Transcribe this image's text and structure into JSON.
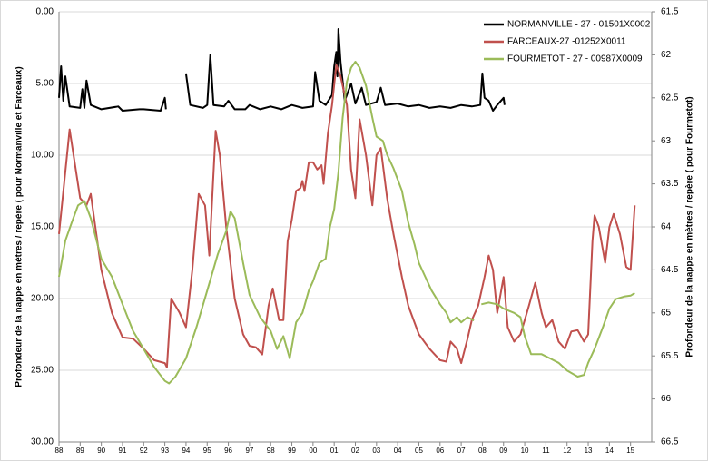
{
  "chart_data": {
    "type": "line",
    "y_label": "Profondeur de la nappe en mètres / repère ( pour Normanville et Farceaux)",
    "y2_label": "Profondeur de la nappe en mètres / repère ( pour Fourmetot)",
    "y_inverted": true,
    "y2_inverted": true,
    "grid": true,
    "legend": "top-right",
    "xlim": [
      1988,
      2016
    ],
    "xticks": [
      {
        "value": 1988,
        "label": "88"
      },
      {
        "value": 1989,
        "label": "89"
      },
      {
        "value": 1990,
        "label": "90"
      },
      {
        "value": 1991,
        "label": "91"
      },
      {
        "value": 1992,
        "label": "92"
      },
      {
        "value": 1993,
        "label": "93"
      },
      {
        "value": 1994,
        "label": "94"
      },
      {
        "value": 1995,
        "label": "95"
      },
      {
        "value": 1996,
        "label": "96"
      },
      {
        "value": 1997,
        "label": "97"
      },
      {
        "value": 1998,
        "label": "98"
      },
      {
        "value": 1999,
        "label": "99"
      },
      {
        "value": 2000,
        "label": "00"
      },
      {
        "value": 2001,
        "label": "01"
      },
      {
        "value": 2002,
        "label": "02"
      },
      {
        "value": 2003,
        "label": "03"
      },
      {
        "value": 2004,
        "label": "04"
      },
      {
        "value": 2005,
        "label": "05"
      },
      {
        "value": 2006,
        "label": "06"
      },
      {
        "value": 2007,
        "label": "07"
      },
      {
        "value": 2008,
        "label": "08"
      },
      {
        "value": 2009,
        "label": "09"
      },
      {
        "value": 2010,
        "label": "10"
      },
      {
        "value": 2011,
        "label": "11"
      },
      {
        "value": 2012,
        "label": "12"
      },
      {
        "value": 2013,
        "label": "13"
      },
      {
        "value": 2014,
        "label": "14"
      },
      {
        "value": 2015,
        "label": "15"
      }
    ],
    "ylim": [
      0,
      30
    ],
    "yticks": [
      {
        "value": 0,
        "label": "0.00"
      },
      {
        "value": 5,
        "label": "5.00"
      },
      {
        "value": 10,
        "label": "10.00"
      },
      {
        "value": 15,
        "label": "15.00"
      },
      {
        "value": 20,
        "label": "20.00"
      },
      {
        "value": 25,
        "label": "25.00"
      },
      {
        "value": 30,
        "label": "30.00"
      }
    ],
    "y2lim": [
      61.5,
      66.5
    ],
    "y2ticks": [
      61.5,
      62,
      62.5,
      63,
      63.5,
      64,
      64.5,
      65,
      65.5,
      66,
      66.5
    ],
    "series": [
      {
        "name": "NORMANVILLE - 27 - 01501X0002",
        "color": "#000000",
        "x": [
          1988.0,
          1988.1,
          1988.2,
          1988.3,
          1988.5,
          1989.0,
          1989.1,
          1989.2,
          1989.3,
          1989.5,
          1990.0,
          1990.8,
          1991.0,
          1991.8,
          1992.0,
          1992.8,
          1993.0,
          1993.05,
          1993.5,
          1994.0,
          1994.2,
          1994.8,
          1995.0,
          1995.15,
          1995.3,
          1995.8,
          1996.0,
          1996.3,
          1996.8,
          1997.0,
          1997.5,
          1998.0,
          1998.5,
          1999.0,
          1999.5,
          2000.0,
          2000.1,
          2000.3,
          2000.6,
          2000.9,
          2001.0,
          2001.1,
          2001.15,
          2001.2,
          2001.3,
          2001.5,
          2001.8,
          2002.0,
          2002.3,
          2002.5,
          2003.0,
          2003.2,
          2003.4,
          2004.0,
          2004.5,
          2005.0,
          2005.5,
          2006.0,
          2006.5,
          2007.0,
          2007.5,
          2007.9,
          2008.0,
          2008.1,
          2008.3,
          2008.5,
          2008.7,
          2009.0,
          2009.05
        ],
        "values": [
          6.0,
          3.8,
          6.2,
          4.5,
          6.6,
          6.7,
          5.4,
          6.7,
          4.8,
          6.5,
          6.8,
          6.6,
          6.9,
          6.8,
          6.8,
          6.9,
          6.0,
          6.8,
          null,
          4.3,
          6.5,
          6.7,
          6.5,
          3.0,
          6.5,
          6.6,
          6.2,
          6.8,
          6.8,
          6.5,
          6.8,
          6.6,
          6.8,
          6.5,
          6.7,
          6.6,
          4.2,
          6.2,
          6.5,
          5.8,
          3.8,
          2.8,
          4.5,
          1.2,
          3.5,
          6.2,
          5.0,
          6.4,
          5.3,
          6.5,
          6.3,
          5.3,
          6.5,
          6.4,
          6.6,
          6.5,
          6.7,
          6.6,
          6.7,
          6.5,
          6.6,
          6.5,
          4.3,
          6.0,
          6.2,
          6.9,
          6.5,
          6.0,
          6.5
        ]
      },
      {
        "name": "FARCEAUX-27 -01252X0011",
        "color": "#c0504d",
        "x": [
          1988.0,
          1988.5,
          1989.0,
          1989.3,
          1989.5,
          1990.0,
          1990.5,
          1991.0,
          1991.5,
          1992.0,
          1992.5,
          1993.0,
          1993.1,
          1993.3,
          1993.7,
          1994.0,
          1994.3,
          1994.6,
          1994.9,
          1995.1,
          1995.4,
          1995.6,
          1995.9,
          1996.3,
          1996.7,
          1997.0,
          1997.3,
          1997.6,
          1997.9,
          1998.1,
          1998.4,
          1998.6,
          1998.8,
          1999.0,
          1999.2,
          1999.4,
          1999.5,
          1999.6,
          1999.8,
          2000.0,
          2000.2,
          2000.4,
          2000.5,
          2000.7,
          2000.9,
          2001.1,
          2001.3,
          2001.6,
          2001.8,
          2002.0,
          2002.2,
          2002.5,
          2002.8,
          2003.0,
          2003.2,
          2003.5,
          2003.8,
          2004.2,
          2004.5,
          2005.0,
          2005.5,
          2006.0,
          2006.3,
          2006.5,
          2006.8,
          2007.0,
          2007.3,
          2007.5,
          2007.8,
          2008.1,
          2008.3,
          2008.5,
          2008.7,
          2009.0,
          2009.2,
          2009.5,
          2009.8,
          2010.0,
          2010.2,
          2010.5,
          2010.8,
          2011.0,
          2011.3,
          2011.6,
          2011.9,
          2012.2,
          2012.5,
          2012.8,
          2013.0,
          2013.2,
          2013.3,
          2013.5,
          2013.8,
          2014.0,
          2014.2,
          2014.5,
          2014.8,
          2015.0,
          2015.2
        ],
        "values": [
          15.5,
          8.2,
          13.0,
          13.5,
          12.7,
          18.0,
          21.0,
          22.7,
          22.8,
          23.5,
          24.3,
          24.5,
          24.8,
          20.0,
          21.0,
          22.0,
          18.0,
          12.7,
          13.5,
          17.0,
          8.3,
          10.0,
          15.0,
          20.0,
          22.5,
          23.3,
          23.4,
          23.9,
          20.5,
          19.3,
          21.5,
          21.5,
          16.0,
          14.5,
          12.5,
          12.3,
          11.8,
          12.5,
          10.5,
          10.5,
          11.0,
          10.7,
          12.0,
          8.5,
          6.5,
          3.7,
          4.5,
          6.5,
          11.0,
          13.0,
          7.5,
          10.0,
          13.5,
          10.0,
          9.5,
          13.0,
          15.5,
          18.5,
          20.5,
          22.5,
          23.5,
          24.3,
          24.4,
          23.0,
          23.5,
          24.5,
          22.8,
          21.5,
          20.5,
          18.5,
          17.0,
          18.0,
          21.0,
          18.5,
          22.0,
          23.0,
          22.5,
          21.5,
          20.5,
          18.9,
          21.0,
          22.0,
          21.5,
          23.0,
          23.5,
          22.3,
          22.2,
          23.0,
          22.5,
          16.0,
          14.2,
          15.0,
          17.5,
          15.0,
          14.1,
          15.5,
          17.8,
          18.0,
          13.5
        ]
      },
      {
        "name": "FOURMETOT - 27 - 00987X0009",
        "color": "#9bbb59",
        "axis": "y2",
        "x": [
          1988.0,
          1988.3,
          1988.6,
          1988.9,
          1989.2,
          1989.5,
          1990.0,
          1990.5,
          1991.0,
          1991.5,
          1992.0,
          1992.5,
          1993.0,
          1993.2,
          1993.5,
          1994.0,
          1994.5,
          1995.0,
          1995.5,
          1995.9,
          1996.1,
          1996.3,
          1996.7,
          1997.0,
          1997.5,
          1998.0,
          1998.3,
          1998.6,
          1998.9,
          1999.2,
          1999.5,
          1999.8,
          2000.0,
          2000.3,
          2000.6,
          2000.8,
          2001.0,
          2001.2,
          2001.4,
          2001.6,
          2001.8,
          2002.0,
          2002.2,
          2002.5,
          2002.8,
          2003.0,
          2003.3,
          2003.5,
          2003.8,
          2004.2,
          2004.5,
          2004.8,
          2005.0,
          2005.3,
          2005.6,
          2006.0,
          2006.3,
          2006.5,
          2006.8,
          2007.0,
          2007.3,
          2007.6,
          2007.8,
          2007.95,
          2008.3,
          2008.7,
          2009.0,
          2009.5,
          2009.8,
          2010.0,
          2010.3,
          2010.8,
          2011.2,
          2011.6,
          2012.0,
          2012.5,
          2012.8,
          2013.0,
          2013.3,
          2013.7,
          2014.0,
          2014.3,
          2014.7,
          2015.0,
          2015.2
        ],
        "values": [
          64.58,
          64.16,
          63.95,
          63.75,
          63.7,
          63.9,
          64.37,
          64.58,
          64.9,
          65.21,
          65.42,
          65.63,
          65.79,
          65.82,
          65.74,
          65.53,
          65.16,
          64.74,
          64.32,
          64.05,
          63.82,
          63.9,
          64.42,
          64.79,
          65.05,
          65.21,
          65.42,
          65.27,
          65.53,
          65.11,
          65.0,
          64.74,
          64.63,
          64.42,
          64.37,
          64.0,
          63.79,
          63.37,
          62.73,
          62.31,
          62.15,
          62.08,
          62.15,
          62.36,
          62.73,
          62.95,
          63.0,
          63.16,
          63.32,
          63.58,
          63.95,
          64.21,
          64.42,
          64.58,
          64.74,
          64.9,
          65.0,
          65.11,
          65.05,
          65.11,
          65.05,
          65.09,
          null,
          64.9,
          64.88,
          64.9,
          64.95,
          65.0,
          65.05,
          65.27,
          65.48,
          65.48,
          65.53,
          65.58,
          65.67,
          65.74,
          65.72,
          65.58,
          65.42,
          65.16,
          64.95,
          64.84,
          64.81,
          64.8,
          64.77
        ]
      }
    ]
  }
}
